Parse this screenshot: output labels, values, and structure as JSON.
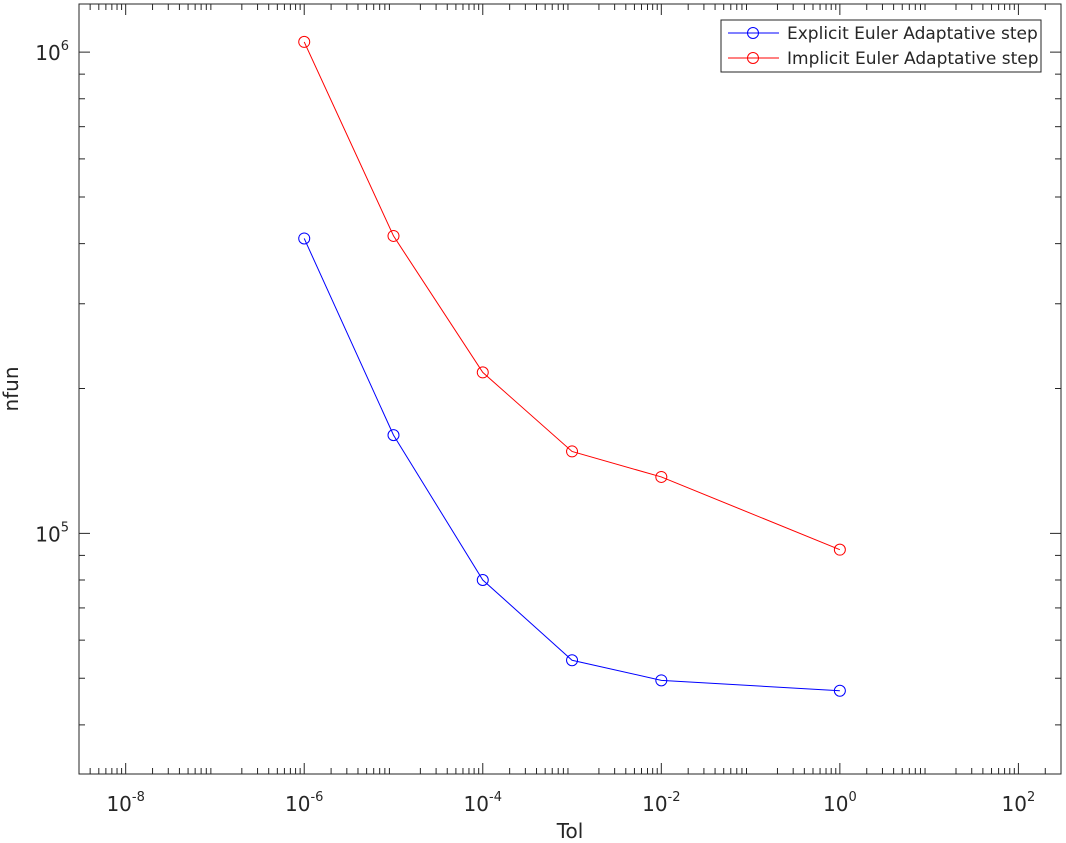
{
  "chart_data": {
    "type": "line",
    "title": "",
    "xlabel": "Tol",
    "ylabel": "nfun",
    "xscale": "log",
    "yscale": "log",
    "xlim": [
      3e-09,
      300
    ],
    "ylim": [
      31622.8,
      1258925.4
    ],
    "x_ticks": [
      {
        "value": 1e-08,
        "base": "10",
        "exp": "-8"
      },
      {
        "value": 1e-06,
        "base": "10",
        "exp": "-6"
      },
      {
        "value": 0.0001,
        "base": "10",
        "exp": "-4"
      },
      {
        "value": 0.01,
        "base": "10",
        "exp": "-2"
      },
      {
        "value": 1,
        "base": "10",
        "exp": "0"
      },
      {
        "value": 100,
        "base": "10",
        "exp": "2"
      }
    ],
    "y_ticks": [
      {
        "value": 100000,
        "base": "10",
        "exp": "5"
      },
      {
        "value": 1000000,
        "base": "10",
        "exp": "6"
      }
    ],
    "grid": false,
    "legend_position": "top-right",
    "x": [
      1e-06,
      1e-05,
      0.0001,
      0.001,
      0.01,
      1
    ],
    "series": [
      {
        "name": "Explicit Euler Adaptative step",
        "color": "#0000ff",
        "marker": "circle",
        "values": [
          410000,
          160000,
          80000,
          54500,
          49500,
          47100
        ]
      },
      {
        "name": "Implicit Euler Adaptative step",
        "color": "#ff0000",
        "marker": "circle",
        "values": [
          1050000,
          415000,
          216000,
          148000,
          131000,
          92500
        ]
      }
    ]
  }
}
